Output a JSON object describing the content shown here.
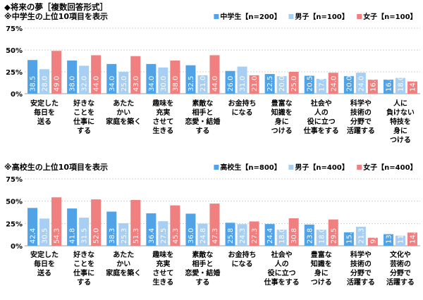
{
  "heading": "◆将来の夢［複数回答形式］",
  "colors": {
    "group": "#4FA3E6",
    "boys": "#A6CFF3",
    "girls": "#F07F7F"
  },
  "chart_data": [
    {
      "type": "bar",
      "title": "※中学生の上位10項目を表示",
      "ylim": [
        0,
        75
      ],
      "yticks": [
        "0%",
        "25%",
        "50%",
        "75%"
      ],
      "grid": true,
      "legend_position": "top-right",
      "categories": [
        "安定した\n毎日を\n送る",
        "好きな\nことを\n仕事に\nする",
        "あたた\nかい\n家庭を築く",
        "趣味を\n充実\nさせて\n生きる",
        "素敵な\n相手と\n恋愛・結婚\nする",
        "お金持ち\nになる",
        "豊富な\n知識を\n身に\nつける",
        "社会や\n人の\n役に立つ\n仕事をする",
        "科学や\n技術の\n分野で\n活躍する",
        "人に\n負けない\n特技を\n身に\nつける"
      ],
      "series": [
        {
          "name": "中学生【n=200】",
          "values": [
            38.5,
            38.0,
            34.0,
            34.0,
            32.5,
            26.0,
            22.5,
            20.5,
            20.0,
            16.0
          ]
        },
        {
          "name": "男子【n=100】",
          "values": [
            28.0,
            32.0,
            25.0,
            30.0,
            21.0,
            31.0,
            20.0,
            17.0,
            24.0,
            18.0
          ]
        },
        {
          "name": "女子【n=100】",
          "values": [
            49.0,
            44.0,
            43.0,
            38.0,
            44.0,
            21.0,
            25.0,
            24.0,
            16.0,
            14.0
          ]
        }
      ]
    },
    {
      "type": "bar",
      "title": "※高校生の上位10項目を表示",
      "ylim": [
        0,
        75
      ],
      "yticks": [
        "0%",
        "25%",
        "50%",
        "75%"
      ],
      "grid": true,
      "legend_position": "top-right",
      "categories": [
        "安定した\n毎日を\n送る",
        "好きな\nことを\n仕事に\nする",
        "あたた\nかい\n家庭を築く",
        "趣味を\n充実\nさせて\n生きる",
        "素敵な\n相手と\n恋愛・結婚\nする",
        "お金持ち\nになる",
        "社会や\n人の\n役に立つ\n仕事をする",
        "豊富な\n知識を\n身に\nつける",
        "科学や\n技術の\n分野で\n活躍する",
        "文化や\n芸術の\n分野で\n活躍する"
      ],
      "series": [
        {
          "name": "高校生【n=800】",
          "values": [
            42.4,
            41.8,
            38.3,
            36.4,
            36.0,
            25.8,
            24.4,
            23.8,
            15.1,
            13.0
          ]
        },
        {
          "name": "男子【n=400】",
          "values": [
            30.5,
            31.5,
            25.3,
            27.5,
            24.8,
            24.3,
            18.0,
            18.0,
            21.3,
            11.3
          ]
        },
        {
          "name": "女子【n=400】",
          "values": [
            54.3,
            52.0,
            51.3,
            45.3,
            47.3,
            27.3,
            30.8,
            29.5,
            9.0,
            14.8
          ]
        }
      ]
    }
  ]
}
